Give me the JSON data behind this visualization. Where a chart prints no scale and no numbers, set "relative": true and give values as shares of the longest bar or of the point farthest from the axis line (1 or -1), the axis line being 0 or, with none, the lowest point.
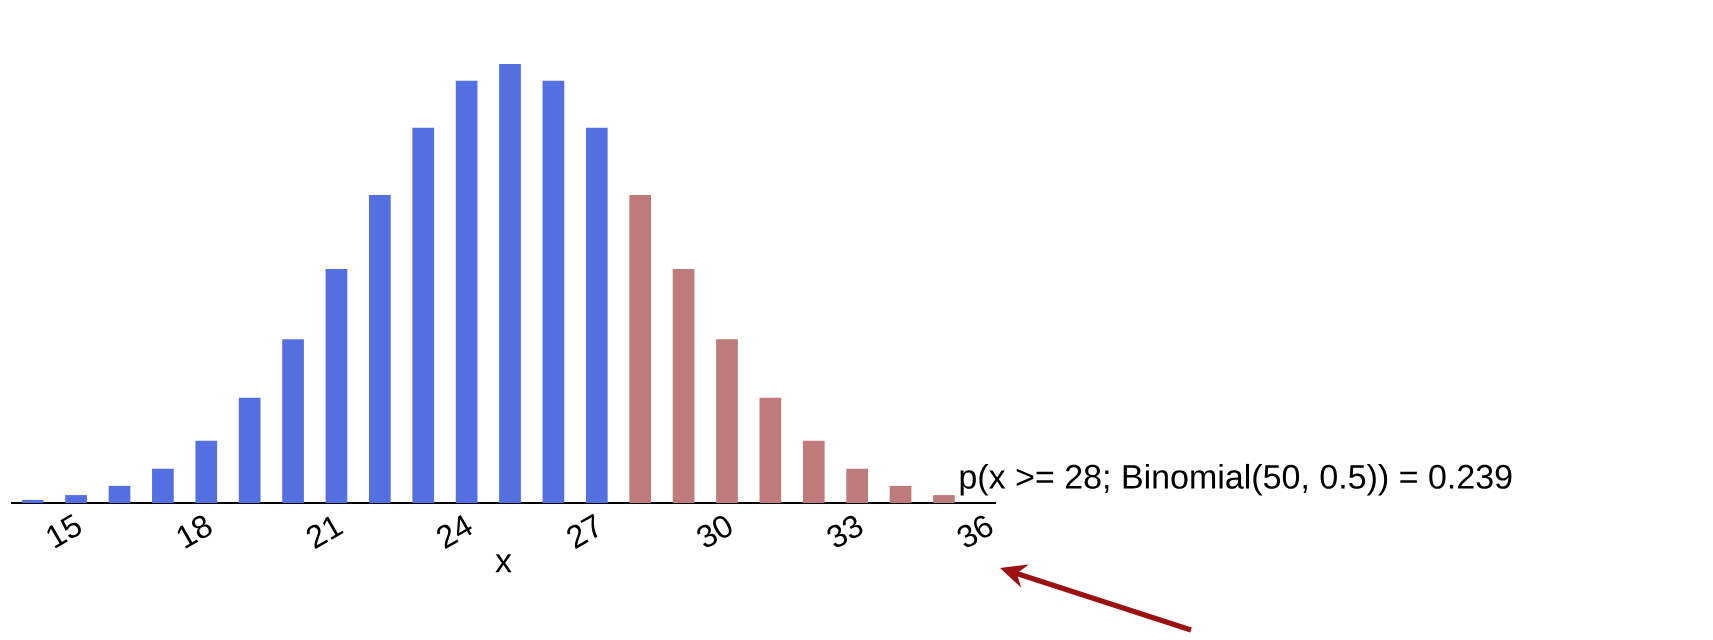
{
  "chart_data": {
    "type": "bar",
    "relative": true,
    "x": [
      14,
      15,
      16,
      17,
      18,
      19,
      20,
      21,
      22,
      23,
      24,
      25,
      26,
      27,
      28,
      29,
      30,
      31,
      32,
      33,
      34,
      35
    ],
    "values": [
      0.007,
      0.018,
      0.039,
      0.078,
      0.142,
      0.24,
      0.373,
      0.533,
      0.702,
      0.855,
      0.962,
      1,
      0.962,
      0.855,
      0.702,
      0.533,
      0.373,
      0.24,
      0.142,
      0.078,
      0.039,
      0.018
    ],
    "colors": [
      "#5470e0",
      "#5470e0",
      "#5470e0",
      "#5470e0",
      "#5470e0",
      "#5470e0",
      "#5470e0",
      "#5470e0",
      "#5470e0",
      "#5470e0",
      "#5470e0",
      "#5470e0",
      "#5470e0",
      "#5470e0",
      "#bf7b7b",
      "#bf7b7b",
      "#bf7b7b",
      "#bf7b7b",
      "#bf7b7b",
      "#bf7b7b",
      "#bf7b7b",
      "#bf7b7b"
    ],
    "xlim": [
      13.5,
      36.2
    ],
    "xticks": [
      15,
      18,
      21,
      24,
      27,
      30,
      33,
      36
    ],
    "xlabel": "x",
    "annotations": [
      "p(x >= 28; Binomial(50, 0.5)) = 0.239"
    ]
  }
}
